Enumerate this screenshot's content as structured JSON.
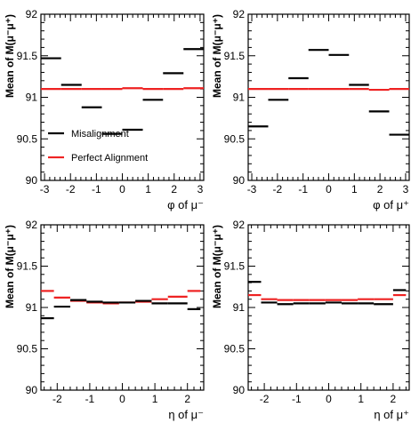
{
  "chart_data": [
    {
      "type": "line",
      "style": "step-segments",
      "xlabel": "φ of μ⁻",
      "ylabel": "Mean of M(μ⁻μ⁺)",
      "xlim": [
        -3.14,
        3.14
      ],
      "ylim": [
        90,
        92
      ],
      "xticks": [
        -3,
        -2,
        -1,
        0,
        1,
        2,
        3
      ],
      "yticks": [
        90,
        90.5,
        91,
        91.5,
        92
      ],
      "legend_position": "lower-left",
      "bin_edges": [
        -3.14,
        -2.36,
        -1.57,
        -0.79,
        0,
        0.79,
        1.57,
        2.36,
        3.14
      ],
      "series": [
        {
          "name": "Misalignment",
          "color": "#000000",
          "values": [
            91.47,
            91.15,
            90.88,
            90.56,
            90.61,
            90.97,
            91.29,
            91.58
          ]
        },
        {
          "name": "Perfect Alignment",
          "color": "#ee2222",
          "values": [
            91.1,
            91.1,
            91.1,
            91.1,
            91.11,
            91.1,
            91.1,
            91.11
          ]
        }
      ]
    },
    {
      "type": "line",
      "style": "step-segments",
      "xlabel": "φ of μ⁺",
      "ylabel": "Mean of M(μ⁻μ⁺)",
      "xlim": [
        -3.14,
        3.14
      ],
      "ylim": [
        90,
        92
      ],
      "xticks": [
        -3,
        -2,
        -1,
        0,
        1,
        2,
        3
      ],
      "yticks": [
        90,
        90.5,
        91,
        91.5,
        92
      ],
      "bin_edges": [
        -3.14,
        -2.36,
        -1.57,
        -0.79,
        0,
        0.79,
        1.57,
        2.36,
        3.14
      ],
      "series": [
        {
          "name": "Misalignment",
          "color": "#000000",
          "values": [
            90.65,
            90.97,
            91.23,
            91.57,
            91.51,
            91.15,
            90.83,
            90.55
          ]
        },
        {
          "name": "Perfect Alignment",
          "color": "#ee2222",
          "values": [
            91.1,
            91.1,
            91.1,
            91.1,
            91.1,
            91.1,
            91.09,
            91.1
          ]
        }
      ]
    },
    {
      "type": "line",
      "style": "step-segments",
      "xlabel": "η of μ⁻",
      "ylabel": "Mean of M(μ⁻μ⁺)",
      "xlim": [
        -2.5,
        2.5
      ],
      "ylim": [
        90,
        92
      ],
      "xticks": [
        -2,
        -1,
        0,
        1,
        2
      ],
      "yticks": [
        90,
        90.5,
        91,
        91.5,
        92
      ],
      "bin_edges": [
        -2.5,
        -2.1,
        -1.6,
        -1.1,
        -0.6,
        -0.1,
        0.4,
        0.9,
        1.4,
        2.0,
        2.4
      ],
      "series": [
        {
          "name": "Misalignment",
          "color": "#000000",
          "values": [
            90.87,
            91.01,
            91.09,
            91.07,
            91.06,
            91.06,
            91.08,
            91.05,
            91.05,
            90.98
          ]
        },
        {
          "name": "Perfect Alignment",
          "color": "#ee2222",
          "values": [
            91.2,
            91.12,
            91.08,
            91.06,
            91.05,
            91.06,
            91.07,
            91.1,
            91.13,
            91.2
          ]
        }
      ]
    },
    {
      "type": "line",
      "style": "step-segments",
      "xlabel": "η of μ⁺",
      "ylabel": "Mean of M(μ⁻μ⁺)",
      "xlim": [
        -2.5,
        2.5
      ],
      "ylim": [
        90,
        92
      ],
      "xticks": [
        -2,
        -1,
        0,
        1,
        2
      ],
      "yticks": [
        90,
        90.5,
        91,
        91.5,
        92
      ],
      "bin_edges": [
        -2.5,
        -2.1,
        -1.6,
        -1.1,
        -0.6,
        -0.1,
        0.4,
        0.9,
        1.4,
        2.0,
        2.4
      ],
      "series": [
        {
          "name": "Misalignment",
          "color": "#000000",
          "values": [
            91.31,
            91.06,
            91.04,
            91.05,
            91.05,
            91.06,
            91.05,
            91.05,
            91.04,
            91.21
          ]
        },
        {
          "name": "Perfect Alignment",
          "color": "#ee2222",
          "values": [
            91.15,
            91.1,
            91.09,
            91.09,
            91.09,
            91.09,
            91.09,
            91.1,
            91.1,
            91.15
          ]
        }
      ]
    }
  ]
}
